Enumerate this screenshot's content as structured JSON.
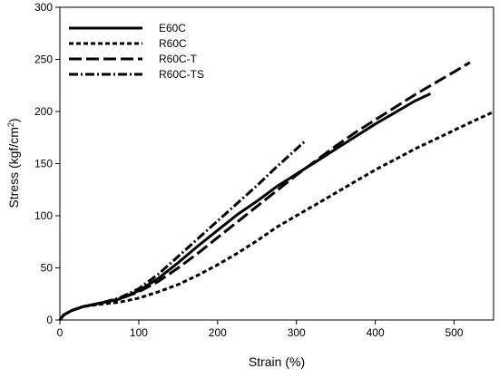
{
  "chart_data": {
    "type": "line",
    "title": "",
    "xlabel": "Strain (%)",
    "ylabel": "Stress (kgf/cm²)",
    "ylabel_main": "Stress (kgf/cm",
    "ylabel_sup": "2",
    "ylabel_close": ")",
    "xlim": [
      0,
      550
    ],
    "ylim": [
      0,
      300
    ],
    "xticks": [
      0,
      100,
      200,
      300,
      400,
      500
    ],
    "yticks": [
      0,
      50,
      100,
      150,
      200,
      250,
      300
    ],
    "grid": false,
    "legend_position": "top-left",
    "series": [
      {
        "name": "E60C",
        "dash": "solid",
        "points": [
          [
            0,
            0
          ],
          [
            5,
            5
          ],
          [
            15,
            9
          ],
          [
            30,
            13
          ],
          [
            50,
            16
          ],
          [
            75,
            20
          ],
          [
            100,
            28
          ],
          [
            125,
            40
          ],
          [
            150,
            55
          ],
          [
            175,
            71
          ],
          [
            200,
            86
          ],
          [
            225,
            101
          ],
          [
            250,
            114
          ],
          [
            275,
            128
          ],
          [
            300,
            140
          ],
          [
            325,
            152
          ],
          [
            350,
            164
          ],
          [
            375,
            176
          ],
          [
            400,
            188
          ],
          [
            425,
            199
          ],
          [
            450,
            210
          ],
          [
            470,
            217
          ]
        ]
      },
      {
        "name": "R60C",
        "dash": "short",
        "points": [
          [
            0,
            0
          ],
          [
            5,
            5
          ],
          [
            15,
            9
          ],
          [
            30,
            13
          ],
          [
            50,
            15
          ],
          [
            75,
            17
          ],
          [
            100,
            21
          ],
          [
            125,
            27
          ],
          [
            150,
            34
          ],
          [
            175,
            43
          ],
          [
            200,
            53
          ],
          [
            225,
            64
          ],
          [
            250,
            76
          ],
          [
            275,
            89
          ],
          [
            300,
            100
          ],
          [
            325,
            111
          ],
          [
            350,
            122
          ],
          [
            375,
            133
          ],
          [
            400,
            144
          ],
          [
            425,
            154
          ],
          [
            450,
            164
          ],
          [
            475,
            173
          ],
          [
            500,
            182
          ],
          [
            525,
            191
          ],
          [
            548,
            199
          ]
        ]
      },
      {
        "name": "R60C-T",
        "dash": "long",
        "points": [
          [
            0,
            0
          ],
          [
            5,
            5
          ],
          [
            15,
            9
          ],
          [
            30,
            13
          ],
          [
            50,
            16
          ],
          [
            75,
            20
          ],
          [
            100,
            27
          ],
          [
            125,
            37
          ],
          [
            150,
            50
          ],
          [
            175,
            64
          ],
          [
            200,
            79
          ],
          [
            225,
            94
          ],
          [
            250,
            109
          ],
          [
            275,
            124
          ],
          [
            300,
            139
          ],
          [
            325,
            153
          ],
          [
            350,
            167
          ],
          [
            375,
            180
          ],
          [
            400,
            192
          ],
          [
            425,
            204
          ],
          [
            450,
            216
          ],
          [
            475,
            227
          ],
          [
            500,
            238
          ],
          [
            520,
            247
          ]
        ]
      },
      {
        "name": "R60C-TS",
        "dash": "dashdot",
        "points": [
          [
            0,
            0
          ],
          [
            5,
            5
          ],
          [
            15,
            9
          ],
          [
            30,
            13
          ],
          [
            50,
            16
          ],
          [
            75,
            21
          ],
          [
            100,
            30
          ],
          [
            125,
            44
          ],
          [
            150,
            61
          ],
          [
            175,
            78
          ],
          [
            200,
            95
          ],
          [
            225,
            112
          ],
          [
            250,
            129
          ],
          [
            275,
            147
          ],
          [
            300,
            164
          ],
          [
            310,
            171
          ]
        ]
      }
    ]
  }
}
